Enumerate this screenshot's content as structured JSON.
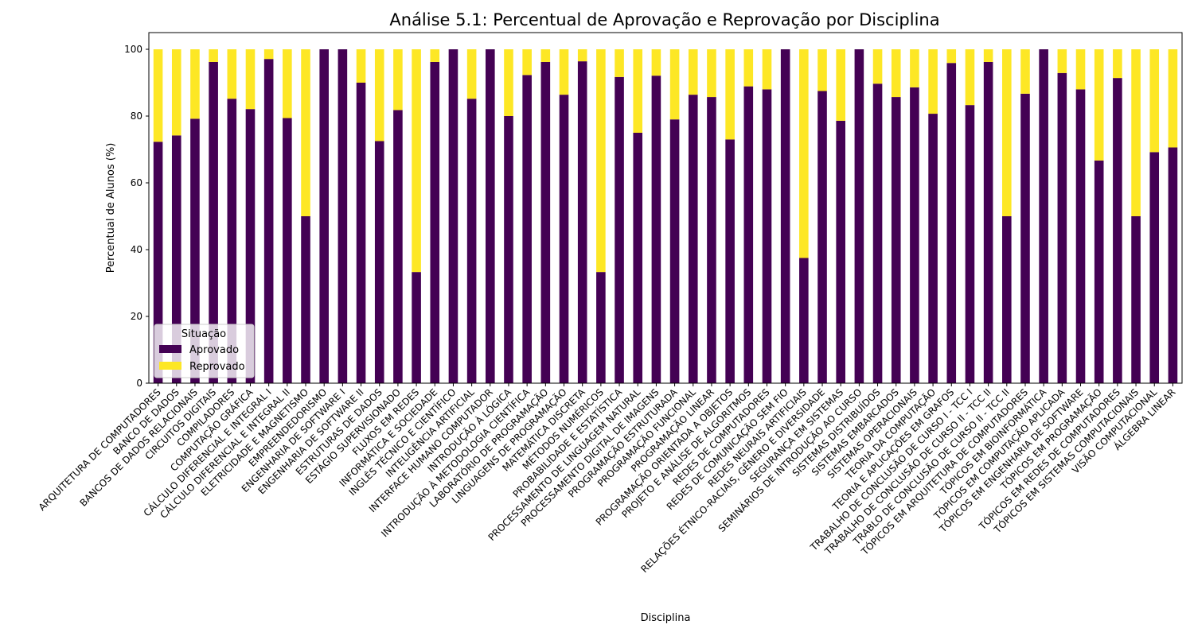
{
  "chart_data": {
    "type": "bar",
    "stacked": true,
    "title": "Análise 5.1: Percentual de Aprovação e Reprovação por Disciplina",
    "xlabel": "Disciplina",
    "ylabel": "Percentual de Alunos (%)",
    "ylim": [
      0,
      105
    ],
    "yticks": [
      "0",
      "20",
      "40",
      "60",
      "80",
      "100"
    ],
    "grid": false,
    "legend": {
      "title": "Situação",
      "position": "bottom-left"
    },
    "categories": [
      "ARQUITETURA DE COMPUTADORES",
      "BANCO DE DADOS",
      "BANCOS DE DADOS RELACIONAIS",
      "CIRCUITOS DIGITAIS",
      "COMPILADORES",
      "COMPUTAÇÃO GRÁFICA",
      "CÁLCULO DIFERENCIAL E INTEGRAL I",
      "CÁLCULO DIFERENCIAL E INTEGRAL II",
      "ELETRICIDADE E MAGNETISMO",
      "EMPREENDEDORISMO",
      "ENGENHARIA DE SOFTWARE I",
      "ENGENHARIA DE SOFTWARE II",
      "ESTRUTURAS DE DADOS",
      "ESTÁGIO SUPERVISIONADO",
      "FLUXOS EM REDES",
      "INFORMÁTICA E SOCIEDADE",
      "INGLÊS TÉCNICO E CIENTÍFICO",
      "INTELIGÊNCIA ARTIFICIAL",
      "INTERFACE HUMANO COMPUTADOR",
      "INTRODUÇÃO À LÓGICA",
      "INTRODUÇÃO À METODOLOGIA CIENTÍFICA",
      "LABORATÓRIO DE PROGRAMAÇÃO",
      "LINGUAGENS DE PROGRAMAÇÃO",
      "MATEMÁTICA DISCRETA",
      "MÉTODOS NUMÉRICOS",
      "PROBABILIDADE E ESTATÍSTICA",
      "PROCESSAMENTO DE LINGUAGEM NATURAL",
      "PROCESSAMENTO DIGITAL DE IMAGENS",
      "PROGRAMAÇÃO ESTRUTURADA",
      "PROGRAMAÇÃO FUNCIONAL",
      "PROGRAMAÇÃO LINEAR",
      "PROGRAMAÇÃO ORIENTADA A OBJETOS",
      "PROJETO E ANÁLISE DE ALGORITMOS",
      "REDES DE COMPUTADORES",
      "REDES DE COMUNICAÇÃO SEM FIO",
      "REDES NEURAIS ARTIFICIAIS",
      "RELAÇÕES ÉTNICO-RACIAIS, GÊNERO E DIVERSIDADE",
      "SEGURANÇA EM SISTEMAS",
      "SEMINÁRIOS DE INTRODUÇÃO AO CURSO",
      "SISTEMAS DISTRIBUÍDOS",
      "SISTEMAS EMBARCADOS",
      "SISTEMAS OPERACIONAIS",
      "TEORIA DA COMPUTAÇÃO",
      "TEORIA E APLICAÇÕES EM GRAFOS",
      "TRABALHO DE CONCLUSÃO DE CURSO I - TCC I",
      "TRABALHO DE CONCLUSÃO DE CURSO II - TCC II",
      "TRABLO DE CONCLUSÃO DE CURSO II - TCC II",
      "TÓPICOS EM ARQUITETURA DE COMPUTADORES",
      "TÓPICOS EM BIOINFORMÁTICA",
      "TÓPICOS EM COMPUTAÇÃO APLICADA",
      "TÓPICOS EM ENGENHARIA DE SOFTWARE",
      "TÓPICOS EM PROGRAMAÇÃO",
      "TÓPICOS EM REDES DE COMPUTADORES",
      "TÓPICOS EM SISTEMAS COMPUTACIONAIS",
      "VISÃO COMPUTACIONAL",
      "ÁLGEBRA LINEAR"
    ],
    "series": [
      {
        "name": "Aprovado",
        "color": "#440154",
        "values": [
          72.3,
          74.2,
          79.2,
          96.2,
          85.2,
          82.1,
          97.1,
          79.4,
          50.0,
          100.0,
          100.0,
          90.0,
          72.5,
          81.8,
          33.3,
          96.2,
          100.0,
          85.2,
          100.0,
          80.0,
          92.3,
          96.2,
          86.4,
          96.4,
          33.3,
          91.7,
          75.0,
          92.1,
          79.0,
          86.4,
          85.7,
          73.0,
          88.9,
          88.0,
          100.0,
          37.5,
          87.5,
          78.6,
          100.0,
          89.7,
          85.7,
          88.6,
          80.7,
          95.9,
          83.3,
          96.2,
          50.0,
          86.7,
          100.0,
          92.9,
          88.0,
          66.7,
          91.4,
          50.0,
          69.2,
          70.6
        ]
      },
      {
        "name": "Reprovado",
        "color": "#fde725",
        "values": [
          27.7,
          25.8,
          20.8,
          3.8,
          14.8,
          17.9,
          2.9,
          20.6,
          50.0,
          0.0,
          0.0,
          10.0,
          27.5,
          18.2,
          66.7,
          3.8,
          0.0,
          14.8,
          0.0,
          20.0,
          7.7,
          3.8,
          13.6,
          3.6,
          66.7,
          8.3,
          25.0,
          7.9,
          21.0,
          13.6,
          14.3,
          27.0,
          11.1,
          12.0,
          0.0,
          62.5,
          12.5,
          21.4,
          0.0,
          10.3,
          14.3,
          11.4,
          19.3,
          4.1,
          16.7,
          3.8,
          50.0,
          13.3,
          0.0,
          7.1,
          12.0,
          33.3,
          8.6,
          50.0,
          30.8,
          29.4
        ]
      }
    ]
  }
}
